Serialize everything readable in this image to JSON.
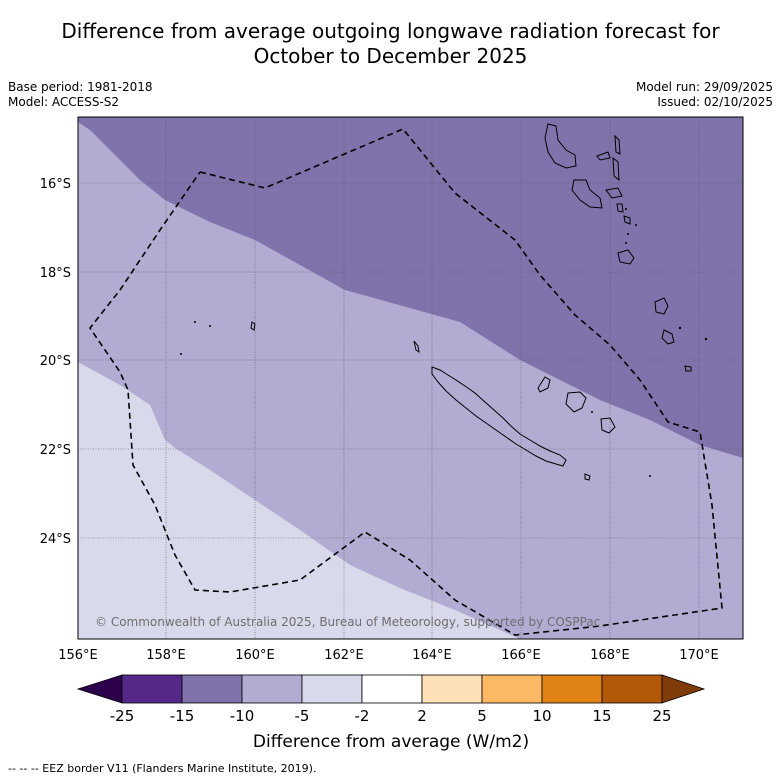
{
  "title_line1": "Difference from average outgoing longwave radiation forecast for",
  "title_line2": "October to December 2025",
  "base_period": "Base period: 1981-2018",
  "model": "Model: ACCESS-S2",
  "model_run": "Model run: 29/09/2025",
  "issued": "Issued: 02/10/2025",
  "copyright": "© Commonwealth of Australia 2025, Bureau of Meteorology, supported by COSPPac",
  "lon_ticks": [
    "156°E",
    "158°E",
    "160°E",
    "162°E",
    "164°E",
    "166°E",
    "168°E",
    "170°E"
  ],
  "lat_ticks": [
    "16°S",
    "18°S",
    "20°S",
    "22°S",
    "24°S"
  ],
  "legend": {
    "title": "Difference from average (W/m2)",
    "labels": [
      "-25",
      "-15",
      "-10",
      "-5",
      "-2",
      "2",
      "5",
      "10",
      "15",
      "25"
    ],
    "colors": {
      "below_min": "#2d004b",
      "c1": "#542788",
      "c2": "#8073ac",
      "c3": "#b2abd2",
      "c4": "#d8daeb",
      "c5": "#ffffff",
      "c6": "#fee0b6",
      "c7": "#fdb863",
      "c8": "#e08214",
      "c9": "#b35806",
      "above_max": "#7f3b08"
    }
  },
  "footer": "--  --  -- EEZ border V11 (Flanders Marine Institute, 2019)."
}
